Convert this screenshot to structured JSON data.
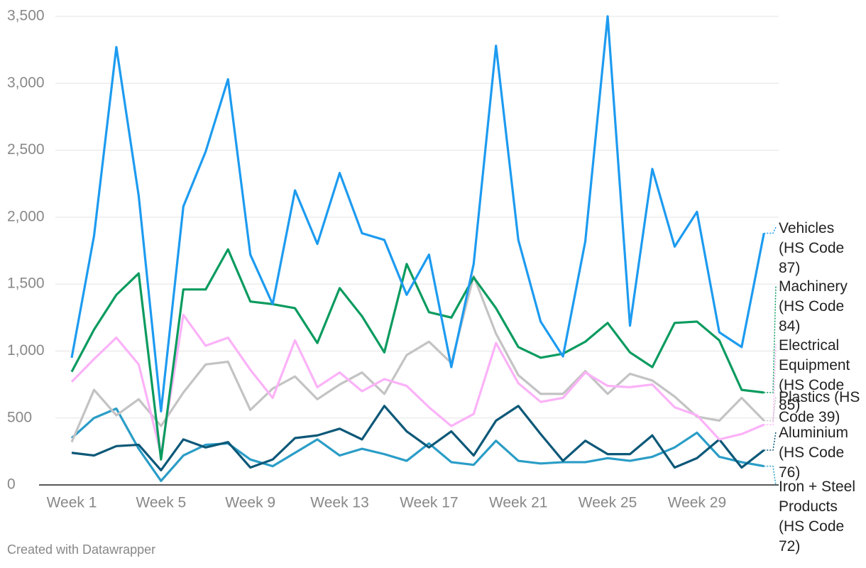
{
  "chart_data": {
    "type": "line",
    "categories": [
      "Week 1",
      null,
      null,
      null,
      "Week 5",
      null,
      null,
      null,
      "Week 9",
      null,
      null,
      null,
      "Week 13",
      null,
      null,
      null,
      "Week 17",
      null,
      null,
      null,
      "Week 21",
      null,
      null,
      null,
      "Week 25",
      null,
      null,
      null,
      "Week 29",
      null,
      null,
      null
    ],
    "series": [
      {
        "name": "Vehicles (HS Code 87)",
        "color": "#1d9bf0",
        "values": [
          950,
          1860,
          3270,
          2160,
          550,
          2080,
          2490,
          3030,
          1720,
          1350,
          2200,
          1800,
          2330,
          1880,
          1830,
          1420,
          1720,
          880,
          1650,
          3280,
          1830,
          1220,
          960,
          1820,
          3500,
          1190,
          2360,
          1780,
          2040,
          1140,
          1030,
          1880
        ]
      },
      {
        "name": "Machinery (HS Code 84)",
        "color": "#0a9b5f",
        "values": [
          845,
          1160,
          1420,
          1580,
          190,
          1460,
          1460,
          1760,
          1370,
          1350,
          1320,
          1060,
          1470,
          1260,
          990,
          1650,
          1290,
          1250,
          1550,
          1320,
          1030,
          950,
          980,
          1070,
          1210,
          990,
          880,
          1210,
          1220,
          1080,
          710,
          690
        ]
      },
      {
        "name": "Electrical Equipment (HS Code 85)",
        "color": "#fbb2f8",
        "values": [
          770,
          940,
          1100,
          900,
          230,
          1270,
          1040,
          1100,
          860,
          650,
          1080,
          730,
          840,
          700,
          790,
          740,
          580,
          440,
          530,
          1060,
          760,
          620,
          650,
          840,
          740,
          730,
          750,
          580,
          520,
          340,
          380,
          450
        ]
      },
      {
        "name": "Plastics (HS Code 39)",
        "color": "#c3c3c3",
        "values": [
          320,
          710,
          520,
          640,
          440,
          690,
          900,
          920,
          560,
          720,
          810,
          640,
          750,
          840,
          680,
          970,
          1070,
          910,
          1560,
          1130,
          820,
          680,
          680,
          850,
          680,
          830,
          780,
          660,
          510,
          480,
          650,
          480
        ]
      },
      {
        "name": "Aluminium (HS Code 76)",
        "color": "#0d5878",
        "values": [
          240,
          220,
          290,
          300,
          110,
          340,
          280,
          320,
          130,
          190,
          350,
          370,
          420,
          340,
          590,
          400,
          280,
          400,
          220,
          480,
          590,
          380,
          180,
          330,
          230,
          230,
          370,
          130,
          200,
          340,
          130,
          260
        ]
      },
      {
        "name": "Iron + Steel Products (HS Code 72)",
        "color": "#2a9dc7",
        "values": [
          350,
          500,
          570,
          270,
          30,
          220,
          300,
          310,
          190,
          140,
          240,
          340,
          220,
          270,
          230,
          180,
          310,
          170,
          150,
          330,
          180,
          160,
          170,
          170,
          200,
          180,
          210,
          280,
          390,
          210,
          170,
          140
        ]
      }
    ],
    "ylim": [
      0,
      3500
    ],
    "yticks": [
      0,
      500,
      {
        "value": 1000,
        "label": "1,000"
      },
      {
        "value": 1500,
        "label": "1,500"
      },
      {
        "value": 2000,
        "label": "2,000"
      },
      {
        "value": 2500,
        "label": "2,500"
      },
      {
        "value": 3000,
        "label": "3,000"
      },
      {
        "value": 3500,
        "label": "3,500"
      }
    ],
    "grid": true,
    "footer": "Created with Datawrapper"
  }
}
